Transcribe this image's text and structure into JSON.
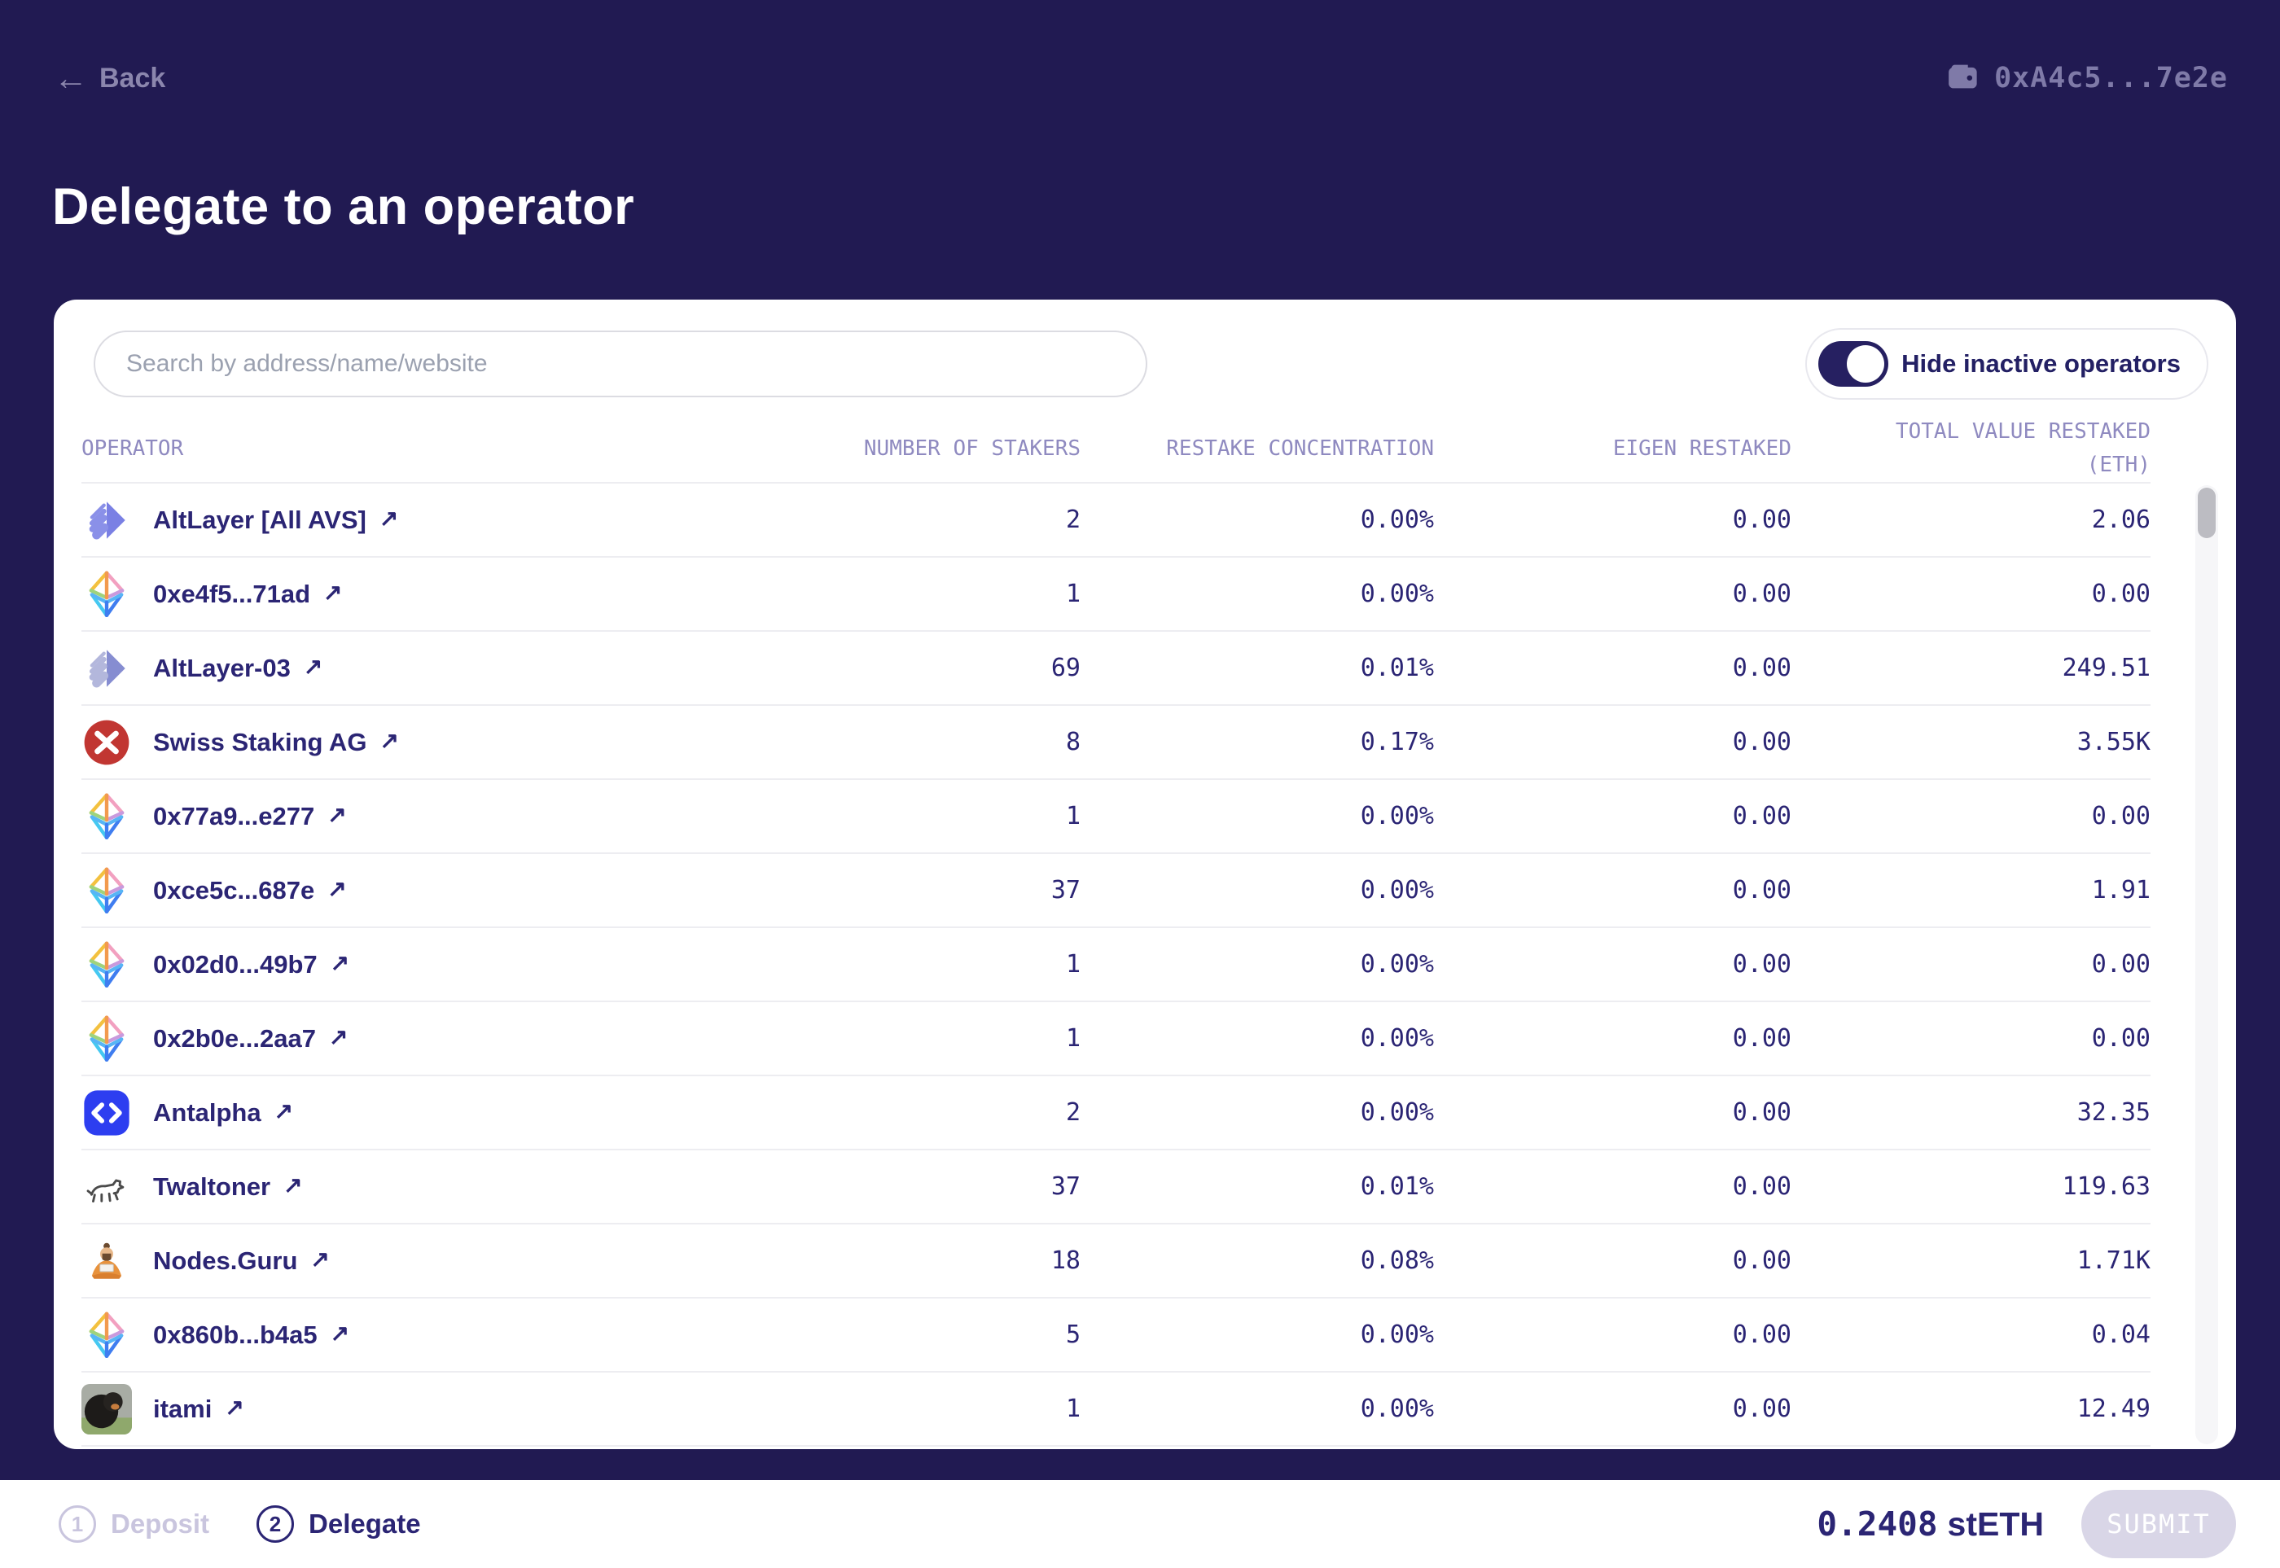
{
  "topbar": {
    "back_arrow": "←",
    "back_label": "Back",
    "wallet_address": "0xA4c5...7e2e",
    "title": "Delegate to an operator"
  },
  "card": {
    "search_placeholder": "Search by address/name/website",
    "toggle_label": "Hide inactive operators",
    "toggle_state": "on"
  },
  "table": {
    "col_operator": "OPERATOR",
    "col_stakers": "NUMBER OF STAKERS",
    "col_concentration": "RESTAKE CONCENTRATION",
    "col_eigen": "EIGEN RESTAKED",
    "col_total_line1": "TOTAL VALUE RESTAKED",
    "col_total_line2": "(ETH)",
    "link_arrow": "↗",
    "rows": [
      {
        "operator": "AltLayer [All AVS]",
        "icon": "altlayer-icon",
        "stakers": "2",
        "concentration": "0.00%",
        "eigen": "0.00",
        "total": "2.06"
      },
      {
        "operator": "0xe4f5...71ad",
        "icon": "eth-icon",
        "stakers": "1",
        "concentration": "0.00%",
        "eigen": "0.00",
        "total": "0.00"
      },
      {
        "operator": "AltLayer-03",
        "icon": "altlayer03-icon",
        "stakers": "69",
        "concentration": "0.01%",
        "eigen": "0.00",
        "total": "249.51"
      },
      {
        "operator": "Swiss Staking AG",
        "icon": "swiss-staking-icon",
        "stakers": "8",
        "concentration": "0.17%",
        "eigen": "0.00",
        "total": "3.55K"
      },
      {
        "operator": "0x77a9...e277",
        "icon": "eth-icon",
        "stakers": "1",
        "concentration": "0.00%",
        "eigen": "0.00",
        "total": "0.00"
      },
      {
        "operator": "0xce5c...687e",
        "icon": "eth-icon",
        "stakers": "37",
        "concentration": "0.00%",
        "eigen": "0.00",
        "total": "1.91"
      },
      {
        "operator": "0x02d0...49b7",
        "icon": "eth-icon",
        "stakers": "1",
        "concentration": "0.00%",
        "eigen": "0.00",
        "total": "0.00"
      },
      {
        "operator": "0x2b0e...2aa7",
        "icon": "eth-icon",
        "stakers": "1",
        "concentration": "0.00%",
        "eigen": "0.00",
        "total": "0.00"
      },
      {
        "operator": "Antalpha",
        "icon": "antalpha-icon",
        "stakers": "2",
        "concentration": "0.00%",
        "eigen": "0.00",
        "total": "32.35"
      },
      {
        "operator": "Twaltoner",
        "icon": "twaltoner-icon",
        "stakers": "37",
        "concentration": "0.01%",
        "eigen": "0.00",
        "total": "119.63"
      },
      {
        "operator": "Nodes.Guru",
        "icon": "nodes-guru-icon",
        "stakers": "18",
        "concentration": "0.08%",
        "eigen": "0.00",
        "total": "1.71K"
      },
      {
        "operator": "0x860b...b4a5",
        "icon": "eth-icon",
        "stakers": "5",
        "concentration": "0.00%",
        "eigen": "0.00",
        "total": "0.04"
      },
      {
        "operator": "itami",
        "icon": "itami-icon",
        "stakers": "1",
        "concentration": "0.00%",
        "eigen": "0.00",
        "total": "12.49"
      }
    ]
  },
  "footer": {
    "steps": [
      {
        "number": "1",
        "label": "Deposit",
        "state": "inactive"
      },
      {
        "number": "2",
        "label": "Delegate",
        "state": "active"
      }
    ],
    "balance": "0.2408",
    "balance_unit": "stETH",
    "submit_label": "SUBMIT"
  },
  "colors": {
    "background": "#211a52",
    "primary_text": "#2b2574",
    "muted_header_purple": "#8f8ac0",
    "topbar_text": "#8b86ad",
    "row_divider": "#ededf1",
    "toggle_track": "#262061",
    "submit_disabled_bg": "#d9d6e7",
    "antalpha_blue": "#2d3ef0",
    "swiss_red": "#c13632",
    "altlayer_purple": "#7a80e4"
  }
}
